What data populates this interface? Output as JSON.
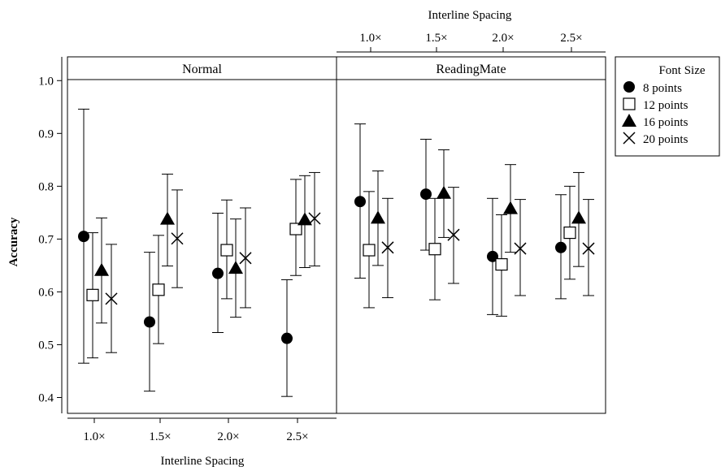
{
  "chart_data": {
    "type": "scatter",
    "subtype": "dot plot with error bars",
    "panels": [
      {
        "title": "Normal",
        "series": [
          {
            "name": "8 points",
            "values": [
              0.705,
              0.543,
              0.635,
              0.512
            ],
            "lower": [
              0.465,
              0.412,
              0.523,
              0.402
            ],
            "upper": [
              0.946,
              0.675,
              0.749,
              0.623
            ]
          },
          {
            "name": "12 points",
            "values": [
              0.594,
              0.604,
              0.679,
              0.719
            ],
            "lower": [
              0.475,
              0.502,
              0.587,
              0.631
            ],
            "upper": [
              0.712,
              0.707,
              0.774,
              0.813
            ]
          },
          {
            "name": "16 points",
            "values": [
              0.641,
              0.738,
              0.645,
              0.737
            ],
            "lower": [
              0.541,
              0.649,
              0.552,
              0.646
            ],
            "upper": [
              0.74,
              0.823,
              0.738,
              0.82
            ]
          },
          {
            "name": "20 points",
            "values": [
              0.587,
              0.701,
              0.664,
              0.739
            ],
            "lower": [
              0.485,
              0.608,
              0.57,
              0.649
            ],
            "upper": [
              0.69,
              0.793,
              0.759,
              0.826
            ]
          }
        ]
      },
      {
        "title": "ReadingMate",
        "series": [
          {
            "name": "8 points",
            "values": [
              0.771,
              0.785,
              0.667,
              0.684
            ],
            "lower": [
              0.626,
              0.679,
              0.557,
              0.587
            ],
            "upper": [
              0.918,
              0.889,
              0.777,
              0.784
            ]
          },
          {
            "name": "12 points",
            "values": [
              0.679,
              0.681,
              0.652,
              0.712
            ],
            "lower": [
              0.57,
              0.585,
              0.554,
              0.624
            ],
            "upper": [
              0.79,
              0.777,
              0.746,
              0.8
            ]
          },
          {
            "name": "16 points",
            "values": [
              0.74,
              0.787,
              0.758,
              0.74
            ],
            "lower": [
              0.65,
              0.703,
              0.675,
              0.648
            ],
            "upper": [
              0.829,
              0.869,
              0.841,
              0.826
            ]
          },
          {
            "name": "20 points",
            "values": [
              0.684,
              0.708,
              0.682,
              0.682
            ],
            "lower": [
              0.589,
              0.616,
              0.593,
              0.593
            ],
            "upper": [
              0.777,
              0.798,
              0.775,
              0.775
            ]
          }
        ]
      }
    ],
    "categories": [
      "1.0×",
      "1.5×",
      "2.0×",
      "2.5×"
    ],
    "xlabel_bottom": "Interline Spacing",
    "xlabel_top": "Interline Spacing",
    "ylabel": "Accuracy",
    "ylim": [
      0.37,
      1.045
    ],
    "yticks": [
      "0.4",
      "0.5",
      "0.6",
      "0.7",
      "0.8",
      "0.9",
      "1.0"
    ],
    "legend": {
      "title": "Font Size",
      "placement": "right",
      "entries": [
        "8 points",
        "12 points",
        "16 points",
        "20 points"
      ],
      "markers": [
        "filled-circle",
        "open-square",
        "filled-triangle",
        "x-cross"
      ]
    },
    "grid": false,
    "colors": {
      "ink": "#000000",
      "background": "#ffffff"
    }
  }
}
